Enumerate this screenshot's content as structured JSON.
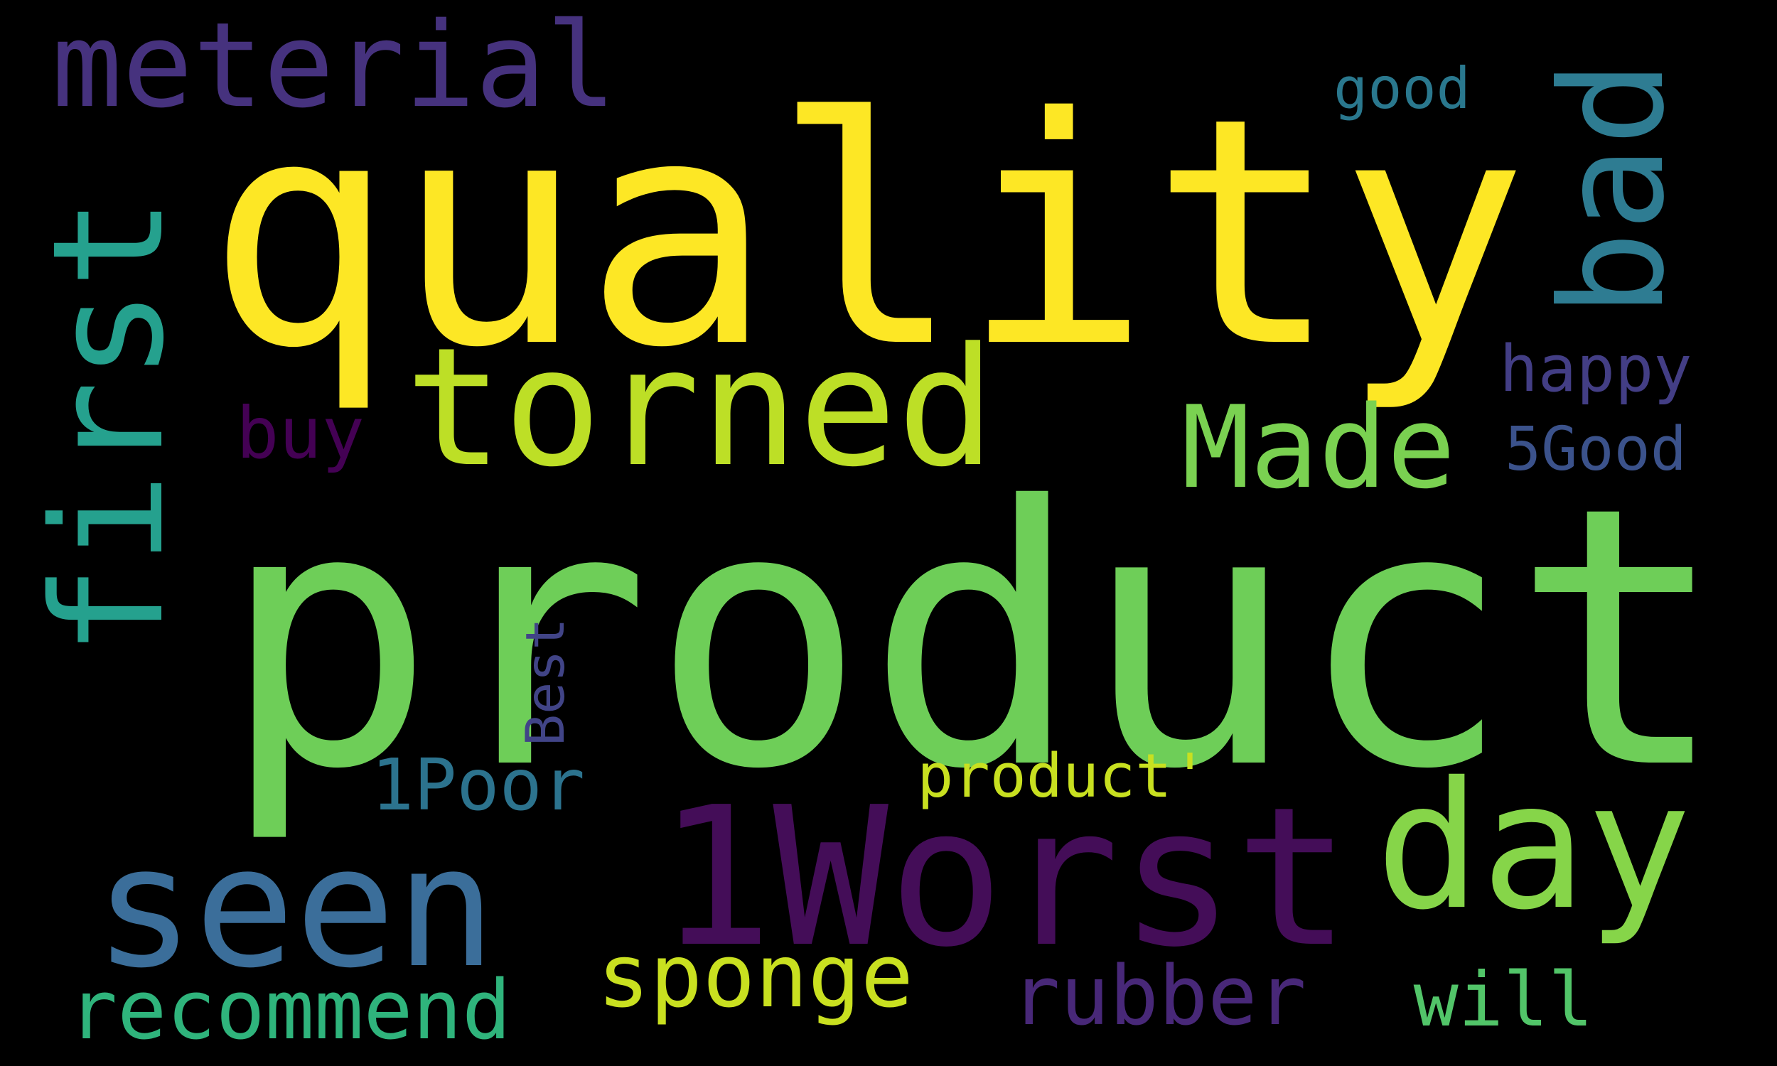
{
  "cloud": {
    "background": "#000000",
    "words": {
      "product": {
        "text": "product",
        "color": "#6ece58"
      },
      "quality": {
        "text": "quality",
        "color": "#fde725"
      },
      "worst": {
        "text": "1Worst",
        "color": "#440d58"
      },
      "seen": {
        "text": "seen",
        "color": "#3b6e9a"
      },
      "first": {
        "text": "first",
        "color": "#25a18e"
      },
      "bad": {
        "text": "bad",
        "color": "#2e7c92"
      },
      "torned": {
        "text": "torned",
        "color": "#bddf26"
      },
      "day": {
        "text": "day",
        "color": "#86d549"
      },
      "meterial": {
        "text": "meterial",
        "color": "#46327e"
      },
      "made": {
        "text": "Made",
        "color": "#7ad151"
      },
      "recommend": {
        "text": "recommend",
        "color": "#2fb47c"
      },
      "sponge": {
        "text": "sponge",
        "color": "#c9e020"
      },
      "rubber": {
        "text": "rubber",
        "color": "#482878"
      },
      "will": {
        "text": "will",
        "color": "#52c569"
      },
      "poor": {
        "text": "1Poor",
        "color": "#2c738e"
      },
      "buy": {
        "text": "buy",
        "color": "#440154"
      },
      "good5": {
        "text": "5Good",
        "color": "#3b528b"
      },
      "happy": {
        "text": "happy",
        "color": "#433e85"
      },
      "product_quote": {
        "text": "product'",
        "color": "#c8e020"
      },
      "best": {
        "text": "Best",
        "color": "#414487"
      },
      "good": {
        "text": "good",
        "color": "#2a788e"
      }
    }
  }
}
